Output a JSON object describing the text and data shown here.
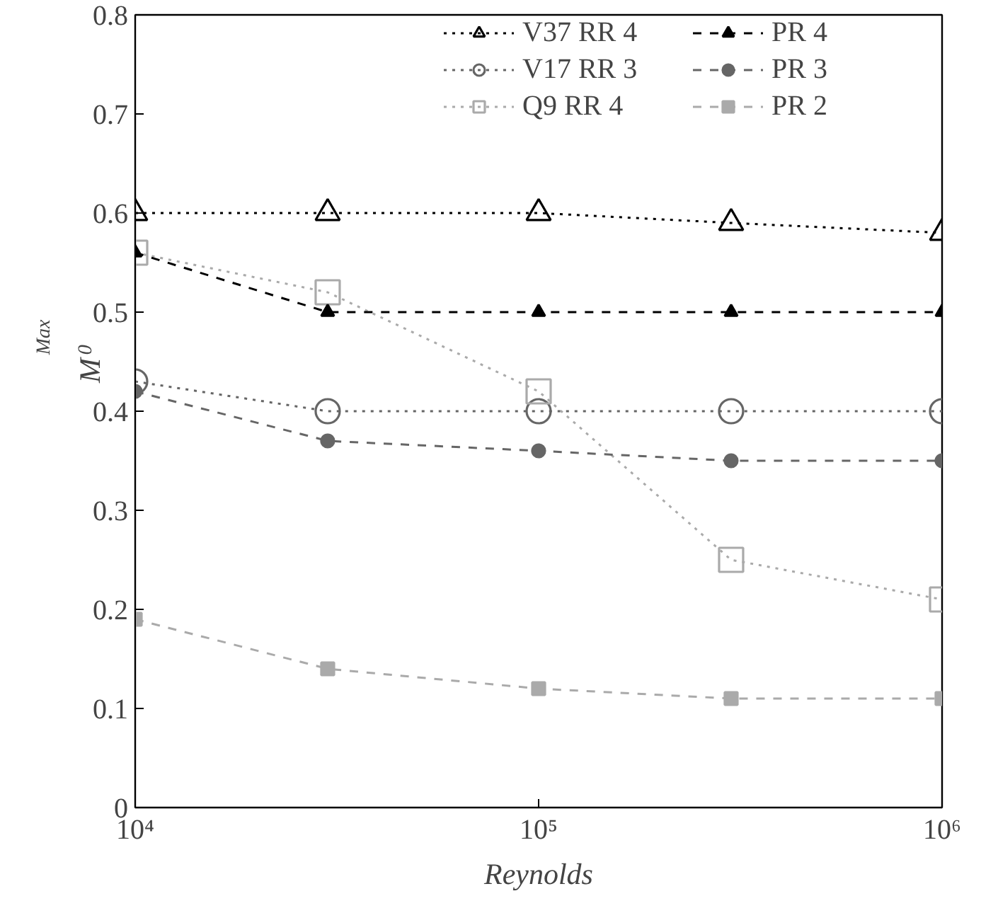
{
  "chart_data": {
    "type": "line",
    "xlabel": "Reynolds",
    "ylabel": "M$_{0}$$^{Max}$",
    "x": [
      10000,
      30000,
      100000,
      300000,
      1000000
    ],
    "xlim": [
      10000,
      1000000
    ],
    "xticks": [
      {
        "value": 10000,
        "label": "10⁴"
      },
      {
        "value": 100000,
        "label": "10⁵"
      },
      {
        "value": 1000000,
        "label": "10⁶"
      }
    ],
    "ylim": [
      0,
      0.8
    ],
    "yticks": [
      0,
      0.1,
      0.2,
      0.3,
      0.4,
      0.5,
      0.6,
      0.7,
      0.8
    ],
    "log": "x",
    "grid": false,
    "legend": "top",
    "series": [
      {
        "name": "V37 RR 4",
        "color": "#000000",
        "marker": "triangle",
        "line_style": "dotted",
        "values": [
          0.6,
          0.6,
          0.6,
          0.59,
          0.58
        ]
      },
      {
        "name": "V17 RR 3",
        "color": "#666666",
        "marker": "circle",
        "line_style": "dotted",
        "values": [
          0.43,
          0.4,
          0.4,
          0.4,
          0.4
        ]
      },
      {
        "name": "Q9 RR 4",
        "color": "#aaaaaa",
        "marker": "square",
        "line_style": "dotted",
        "values": [
          0.56,
          0.52,
          0.42,
          0.25,
          0.21
        ]
      },
      {
        "name": "PR 4",
        "color": "#000000",
        "marker": "triangle",
        "line_style": "dashed",
        "values": [
          0.56,
          0.5,
          0.5,
          0.5,
          0.5
        ]
      },
      {
        "name": "PR 3",
        "color": "#666666",
        "marker": "circle",
        "line_style": "dashed",
        "values": [
          0.42,
          0.37,
          0.36,
          0.35,
          0.35
        ]
      },
      {
        "name": "PR 2",
        "color": "#aaaaaa",
        "marker": "square",
        "line_style": "dashed",
        "values": [
          0.19,
          0.14,
          0.12,
          0.11,
          0.11
        ]
      }
    ]
  }
}
